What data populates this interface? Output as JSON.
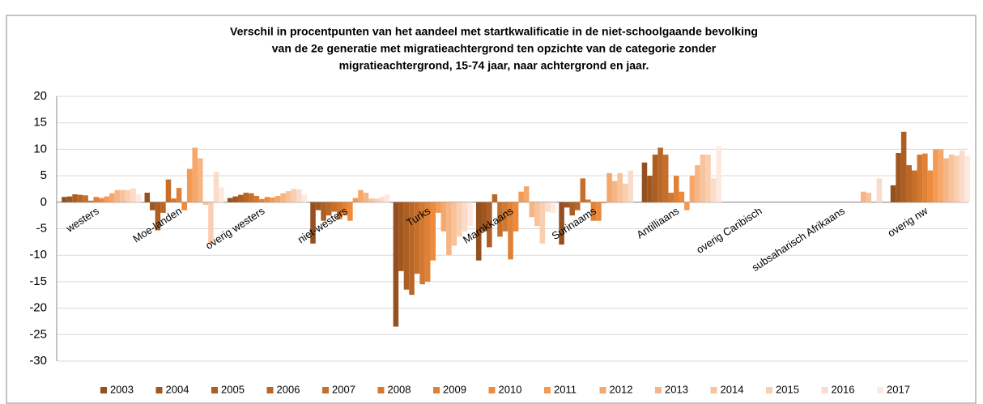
{
  "chart_data": {
    "type": "bar",
    "title": [
      "Verschil in procentpunten van het aandeel met startkwalificatie in de niet-schoolgaande bevolking",
      "van de 2e generatie met migratieachtergrond ten opzichte van de categorie zonder",
      "migratieachtergrond, 15-74 jaar, naar achtergrond en jaar."
    ],
    "categories": [
      "westers",
      "Moe-landen",
      "overig westers",
      "niet-westers",
      "Turks",
      "Marokkaans",
      "Surinaams",
      "Antilliaans",
      "overig Caribisch",
      "subsaharisch Afrikaans",
      "overig nw"
    ],
    "ylim": [
      -30,
      20
    ],
    "yticks": [
      -30,
      -25,
      -20,
      -15,
      -10,
      -5,
      0,
      5,
      10,
      15,
      20
    ],
    "grid": true,
    "legend": "bottom",
    "series": [
      {
        "name": "2003",
        "color": "#94501e",
        "values": [
          1.0,
          1.8,
          0.8,
          -7.8,
          -23.5,
          -11,
          -8,
          7.5,
          null,
          null,
          3.2
        ]
      },
      {
        "name": "2004",
        "color": "#a0561f",
        "values": [
          1.1,
          -1.5,
          1.1,
          -1.5,
          -13,
          -5.5,
          -1,
          5,
          null,
          null,
          9.3
        ]
      },
      {
        "name": "2005",
        "color": "#ad5e22",
        "values": [
          1.5,
          -5.3,
          1.4,
          -3.5,
          -16.5,
          -8.5,
          -2.5,
          9,
          null,
          null,
          13.3
        ]
      },
      {
        "name": "2006",
        "color": "#b96626",
        "values": [
          1.4,
          -2,
          1.8,
          -2.5,
          -17.5,
          1.5,
          -1.5,
          10.3,
          null,
          null,
          7
        ]
      },
      {
        "name": "2007",
        "color": "#c56f2b",
        "values": [
          1.3,
          4.3,
          1.7,
          -1.8,
          -13.5,
          -6.5,
          4.5,
          9,
          null,
          null,
          6
        ]
      },
      {
        "name": "2008",
        "color": "#d27830",
        "values": [
          0.3,
          0.7,
          1.2,
          -3.2,
          -15.5,
          -5.5,
          0.5,
          1.8,
          null,
          null,
          9
        ]
      },
      {
        "name": "2009",
        "color": "#e08135",
        "values": [
          1.0,
          2.7,
          0.6,
          -2.5,
          -15,
          -10.8,
          -3.5,
          5,
          null,
          null,
          9.2
        ]
      },
      {
        "name": "2010",
        "color": "#ed8a3c",
        "values": [
          0.8,
          -1.5,
          1.0,
          -3.5,
          -11,
          -5.5,
          -3.5,
          2,
          null,
          null,
          6
        ]
      },
      {
        "name": "2011",
        "color": "#f39a55",
        "values": [
          1.1,
          6.3,
          0.9,
          0.8,
          -2,
          2,
          -0.2,
          -1.5,
          null,
          null,
          10
        ]
      },
      {
        "name": "2012",
        "color": "#f5a76c",
        "values": [
          1.7,
          10.3,
          1.2,
          2.3,
          -5.5,
          3,
          5.5,
          5,
          null,
          null,
          10
        ]
      },
      {
        "name": "2013",
        "color": "#f6b584",
        "values": [
          2.3,
          8.3,
          1.7,
          1.8,
          -10,
          -2.8,
          4,
          7,
          null,
          2,
          8.3
        ]
      },
      {
        "name": "2014",
        "color": "#f8c29b",
        "values": [
          2.3,
          -0.5,
          2.1,
          0.7,
          -8.2,
          -4.5,
          5.5,
          9,
          null,
          1.8,
          9
        ]
      },
      {
        "name": "2015",
        "color": "#f9cfb2",
        "values": [
          2.3,
          -8,
          2.5,
          0.7,
          -6.5,
          -7.8,
          3.5,
          9,
          null,
          null,
          8.8
        ]
      },
      {
        "name": "2016",
        "color": "#fbdcca",
        "values": [
          2.6,
          5.7,
          2.4,
          1.0,
          -5.5,
          -1.8,
          6,
          4.5,
          null,
          4.5,
          9.8
        ]
      },
      {
        "name": "2017",
        "color": "#fde9df",
        "values": [
          1.5,
          2.8,
          1.4,
          1.5,
          -4.5,
          -2,
          0,
          10.5,
          null,
          null,
          8.8
        ]
      }
    ]
  }
}
